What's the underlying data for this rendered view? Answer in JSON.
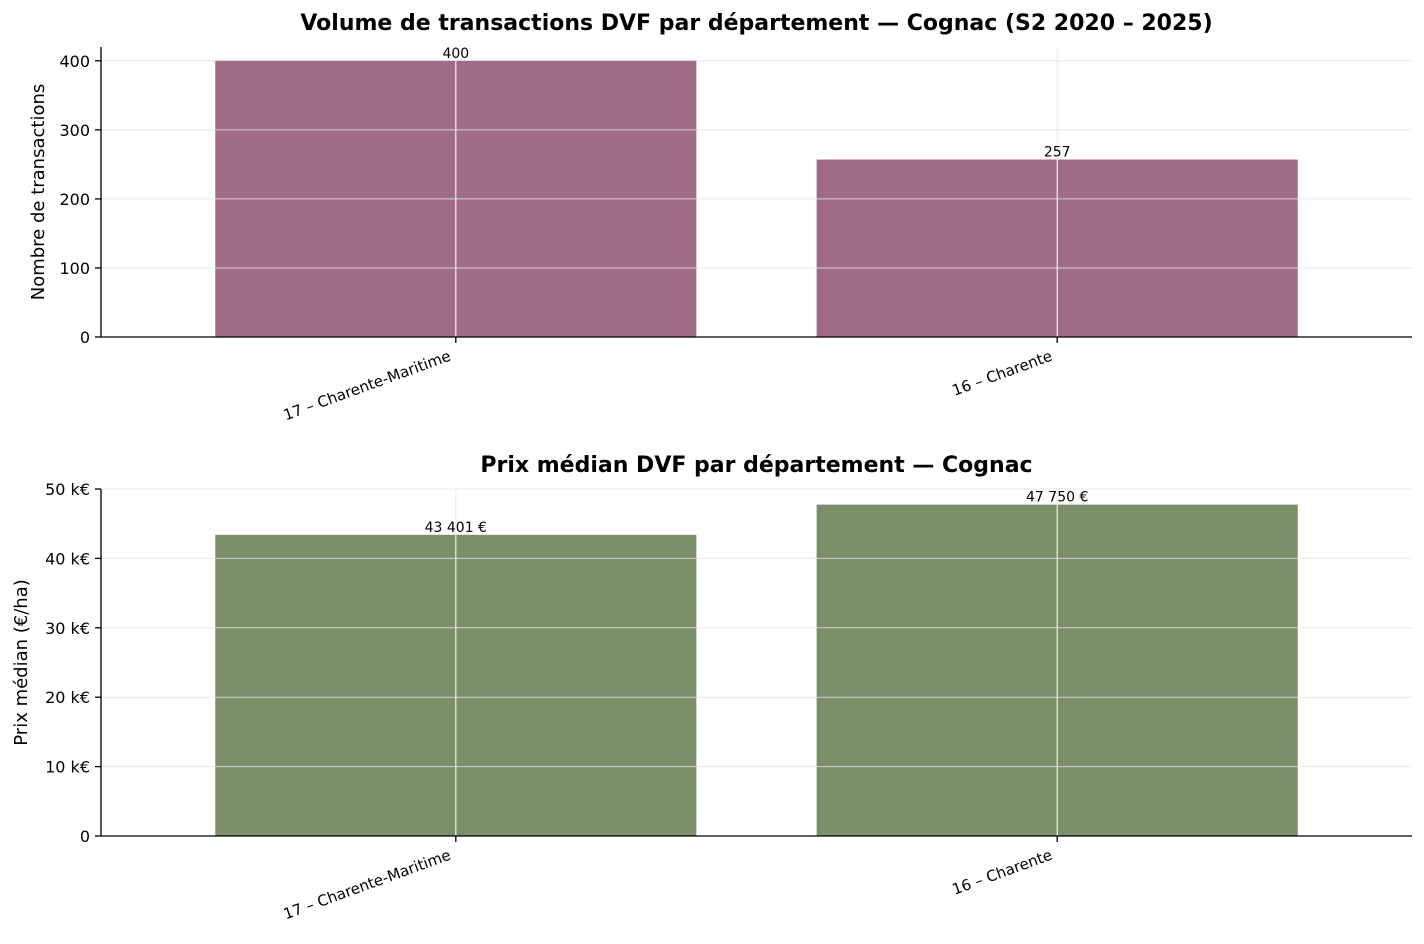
{
  "chart_data": [
    {
      "type": "bar",
      "title": "Volume de transactions DVF par département — Cognac (S2 2020 – 2025)",
      "xlabel": "",
      "ylabel": "Nombre de transactions",
      "categories": [
        "17 – Charente-Maritime",
        "16 – Charente"
      ],
      "values": [
        400,
        257
      ],
      "value_labels": [
        "400",
        "257"
      ],
      "ylim": [
        0,
        420
      ],
      "yticks": [
        0,
        100,
        200,
        300,
        400
      ],
      "ytick_labels": [
        "0",
        "100",
        "200",
        "300",
        "400"
      ],
      "bar_color": "#9e6b88",
      "grid": true,
      "legend": "none"
    },
    {
      "type": "bar",
      "title": "Prix médian DVF par département — Cognac",
      "xlabel": "",
      "ylabel": "Prix médian (€/ha)",
      "categories": [
        "17 – Charente-Maritime",
        "16 – Charente"
      ],
      "values": [
        43401,
        47750
      ],
      "value_labels": [
        "43 401 €",
        "47 750 €"
      ],
      "ylim": [
        0,
        50000
      ],
      "yticks": [
        0,
        10000,
        20000,
        30000,
        40000,
        50000
      ],
      "ytick_labels": [
        "0",
        "10 k€",
        "20 k€",
        "30 k€",
        "40 k€",
        "50 k€"
      ],
      "bar_color": "#7a8e69",
      "grid": true,
      "legend": "none"
    }
  ]
}
